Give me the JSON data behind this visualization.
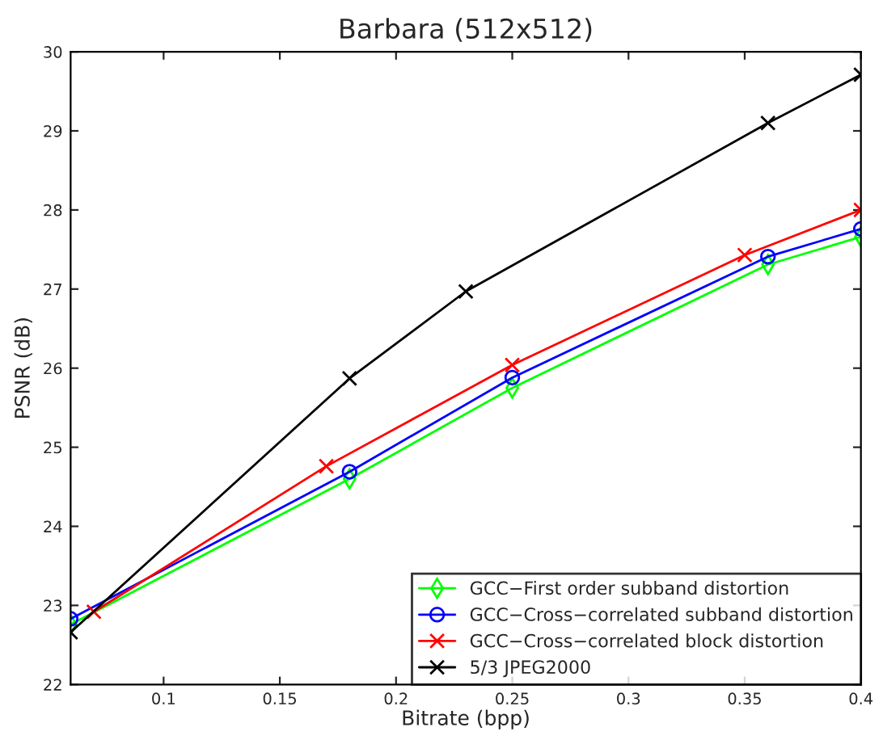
{
  "chart_data": {
    "type": "line",
    "title": "Barbara (512x512)",
    "xlabel": "Bitrate (bpp)",
    "ylabel": "PSNR (dB)",
    "xlim": [
      0.06,
      0.4
    ],
    "xticks": [
      0.1,
      0.15,
      0.2,
      0.25,
      0.3,
      0.35,
      0.4
    ],
    "ylim": [
      22,
      30
    ],
    "yticks": [
      22,
      23,
      24,
      25,
      26,
      27,
      28,
      29,
      30
    ],
    "grid": false,
    "legend": "bottom right",
    "series": [
      {
        "name": "GCC−First order subband distortion",
        "color": "#00ff00",
        "marker": "diamond",
        "x": [
          0.06,
          0.18,
          0.25,
          0.36,
          0.4
        ],
        "values": [
          22.76,
          24.6,
          25.75,
          27.31,
          27.66
        ]
      },
      {
        "name": "GCC−Cross−correlated subband distortion",
        "color": "#0000ff",
        "marker": "circle",
        "x": [
          0.06,
          0.18,
          0.25,
          0.36,
          0.4
        ],
        "values": [
          22.83,
          24.69,
          25.88,
          27.41,
          27.76
        ]
      },
      {
        "name": "GCC−Cross−correlated block distortion",
        "color": "#ff0000",
        "marker": "cross",
        "x": [
          0.07,
          0.17,
          0.25,
          0.35,
          0.4
        ],
        "values": [
          22.92,
          24.76,
          26.04,
          27.43,
          28.0
        ]
      },
      {
        "name": "5/3 JPEG2000",
        "color": "#000000",
        "marker": "cross",
        "x": [
          0.06,
          0.18,
          0.23,
          0.36,
          0.4
        ],
        "values": [
          22.66,
          25.87,
          26.97,
          29.1,
          29.71
        ]
      }
    ]
  }
}
